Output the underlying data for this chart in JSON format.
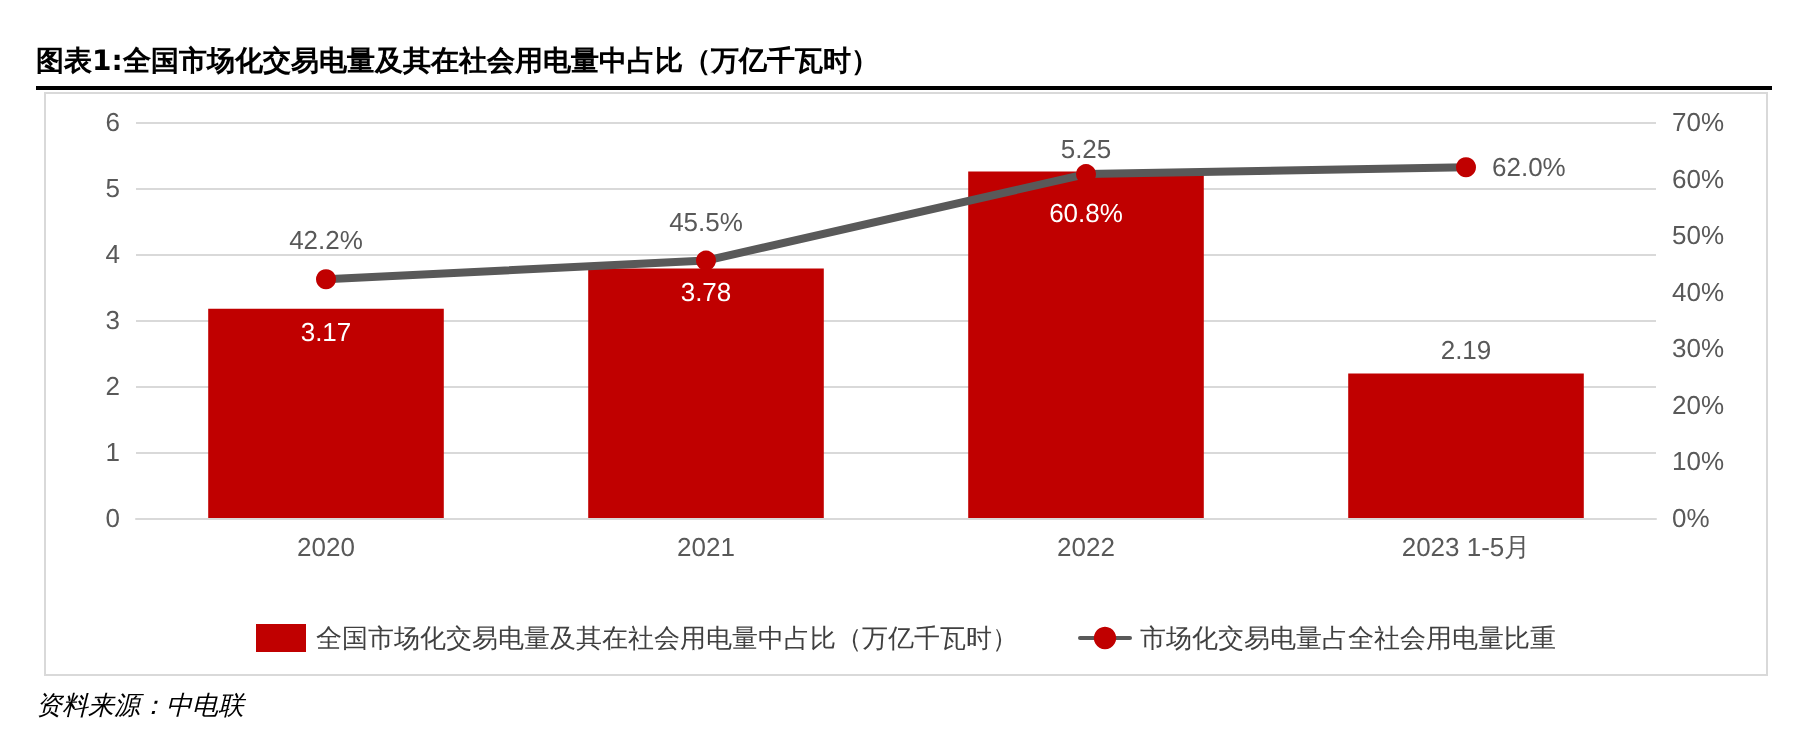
{
  "chart_data": {
    "type": "bar",
    "title": "图表1:全国市场化交易电量及其在社会用电量中占比（万亿千瓦时）",
    "categories": [
      "2020",
      "2021",
      "2022",
      "2023 1-5月"
    ],
    "series": [
      {
        "name": "全国市场化交易电量及其在社会用电量中占比（万亿千瓦时）",
        "color": "#c00000",
        "values": [
          3.17,
          3.78,
          5.25,
          2.19
        ],
        "value_labels": [
          "3.17",
          "3.78",
          "5.25",
          "2.19"
        ]
      },
      {
        "name": "市场化交易电量占全社会用电量比重",
        "type": "line",
        "axis": "y2",
        "color": "#595959",
        "values": [
          42.2,
          45.5,
          60.8,
          62.0
        ],
        "value_labels": [
          "42.2%",
          "45.5%",
          "60.8%",
          "62.0%"
        ]
      }
    ],
    "ylim": [
      0,
      6
    ],
    "yticks": [
      0,
      1,
      2,
      3,
      4,
      5,
      6
    ],
    "y2lim": [
      0,
      70
    ],
    "y2ticks": [
      {
        "value": 0,
        "label": "0%"
      },
      {
        "value": 10,
        "label": "10%"
      },
      {
        "value": 20,
        "label": "20%"
      },
      {
        "value": 30,
        "label": "30%"
      },
      {
        "value": 40,
        "label": "40%"
      },
      {
        "value": 50,
        "label": "50%"
      },
      {
        "value": 60,
        "label": "60%"
      },
      {
        "value": 70,
        "label": "70%"
      }
    ],
    "grid": "y",
    "legend": "bottom",
    "marker": "circle",
    "annotations": [
      "资料来源：中电联"
    ]
  }
}
